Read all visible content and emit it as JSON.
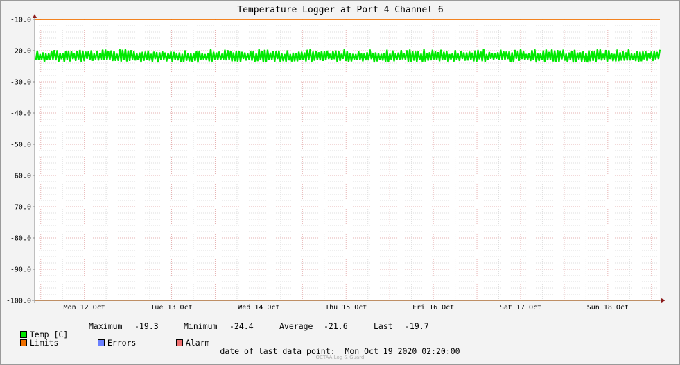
{
  "chart_data": {
    "type": "line",
    "title": "Temperature Logger at Port 4 Channel 6",
    "ylim": [
      -100,
      -10
    ],
    "yticks": [
      "-10.0",
      "-20.0",
      "-30.0",
      "-40.0",
      "-50.0",
      "-60.0",
      "-70.0",
      "-80.0",
      "-90.0",
      "-100.0"
    ],
    "x_range": [
      "2020-10-11 22:20",
      "2020-10-19 02:20"
    ],
    "x_tick_labels": [
      "Mon 12 Oct",
      "Tue 13 Oct",
      "Wed 14 Oct",
      "Thu 15 Oct",
      "Fri 16 Oct",
      "Sat 17 Oct",
      "Sun 18 Oct"
    ],
    "grid": true,
    "series": [
      {
        "name": "Temp [C]",
        "color": "#00e800",
        "min": -24.4,
        "max": -19.3,
        "avg": -21.6,
        "last": -19.7
      },
      {
        "name": "Limits",
        "color": "#f07000",
        "values": [
          -10.0,
          -100.0
        ]
      }
    ]
  },
  "legend": {
    "temp_label": "Temp [C]",
    "limits_label": "Limits",
    "errors_label": "Errors",
    "alarm_label": "Alarm",
    "errors_color": "#6a80ff",
    "alarm_color": "#f07070"
  },
  "stats": {
    "max_label": "Maximum",
    "max_value": "-19.3",
    "min_label": "Minimum",
    "min_value": "-24.4",
    "avg_label": "Average",
    "avg_value": "-21.6",
    "last_label": "Last",
    "last_value": "-19.7"
  },
  "footer": {
    "text": "date of last data point:  Mon Oct 19 2020 02:20:00",
    "watermark": "OCTAA Log & Guard"
  }
}
